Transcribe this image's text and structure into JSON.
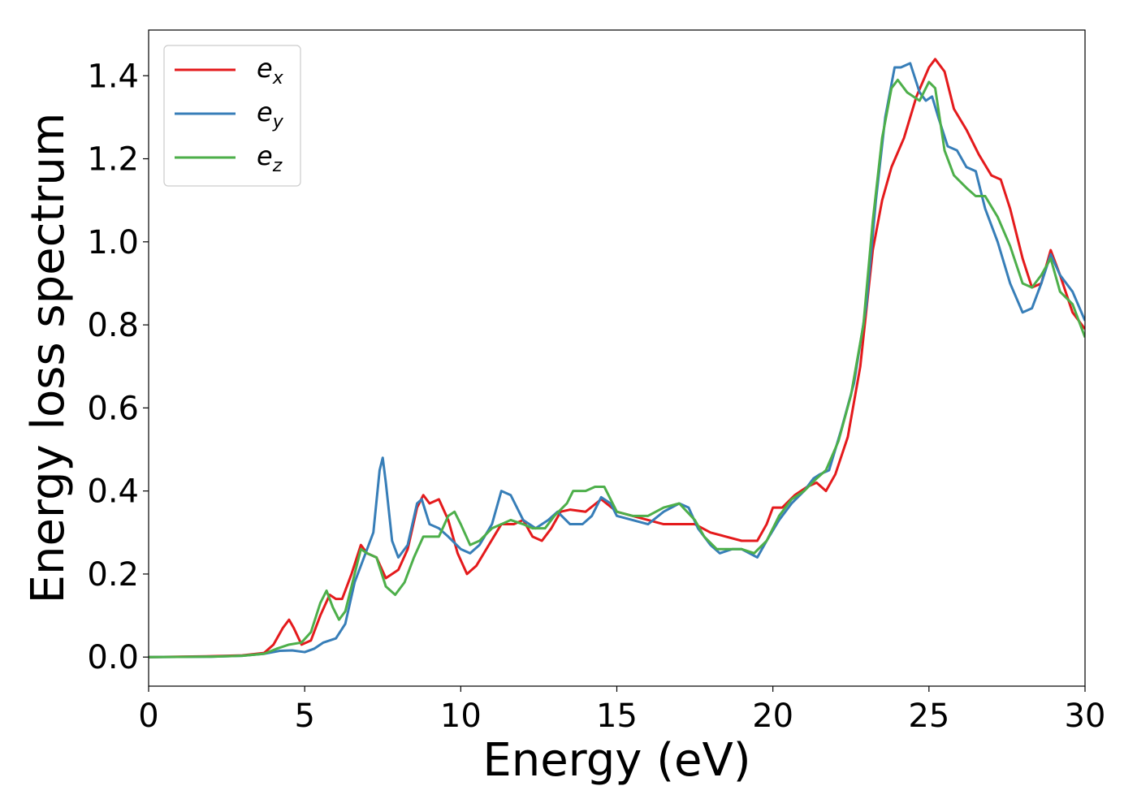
{
  "chart_data": {
    "type": "line",
    "xlabel": "Energy (eV)",
    "ylabel": "Energy loss spectrum",
    "xlim": [
      0,
      30
    ],
    "ylim": [
      -0.07,
      1.51
    ],
    "xticks": [
      0,
      5,
      10,
      15,
      20,
      25,
      30
    ],
    "xtick_labels": [
      "0",
      "5",
      "10",
      "15",
      "20",
      "25",
      "30"
    ],
    "yticks": [
      0.0,
      0.2,
      0.4,
      0.6,
      0.8,
      1.0,
      1.2,
      1.4
    ],
    "ytick_labels": [
      "0.0",
      "0.2",
      "0.4",
      "0.6",
      "0.8",
      "1.0",
      "1.2",
      "1.4"
    ],
    "grid": false,
    "legend_position": "top-left",
    "series": [
      {
        "name": "e_x",
        "label_base": "e",
        "label_sub": "x",
        "color": "#e41a1c",
        "points": [
          [
            0,
            0.0
          ],
          [
            2,
            0.002
          ],
          [
            3,
            0.004
          ],
          [
            3.7,
            0.01
          ],
          [
            4.0,
            0.03
          ],
          [
            4.3,
            0.07
          ],
          [
            4.5,
            0.09
          ],
          [
            4.65,
            0.07
          ],
          [
            4.9,
            0.03
          ],
          [
            5.2,
            0.04
          ],
          [
            5.5,
            0.1
          ],
          [
            5.8,
            0.15
          ],
          [
            6.0,
            0.14
          ],
          [
            6.2,
            0.14
          ],
          [
            6.5,
            0.2
          ],
          [
            6.8,
            0.27
          ],
          [
            7.0,
            0.25
          ],
          [
            7.3,
            0.24
          ],
          [
            7.6,
            0.19
          ],
          [
            8.0,
            0.21
          ],
          [
            8.3,
            0.26
          ],
          [
            8.6,
            0.36
          ],
          [
            8.8,
            0.39
          ],
          [
            9.0,
            0.37
          ],
          [
            9.3,
            0.38
          ],
          [
            9.6,
            0.33
          ],
          [
            9.9,
            0.25
          ],
          [
            10.2,
            0.2
          ],
          [
            10.5,
            0.22
          ],
          [
            10.9,
            0.27
          ],
          [
            11.3,
            0.32
          ],
          [
            11.7,
            0.32
          ],
          [
            12.0,
            0.33
          ],
          [
            12.3,
            0.29
          ],
          [
            12.6,
            0.28
          ],
          [
            12.9,
            0.31
          ],
          [
            13.2,
            0.35
          ],
          [
            13.5,
            0.355
          ],
          [
            14.0,
            0.35
          ],
          [
            14.5,
            0.38
          ],
          [
            15.0,
            0.35
          ],
          [
            15.5,
            0.34
          ],
          [
            16.0,
            0.33
          ],
          [
            16.5,
            0.32
          ],
          [
            17.0,
            0.32
          ],
          [
            17.5,
            0.32
          ],
          [
            18.0,
            0.3
          ],
          [
            18.5,
            0.29
          ],
          [
            19.0,
            0.28
          ],
          [
            19.5,
            0.28
          ],
          [
            19.8,
            0.32
          ],
          [
            20.0,
            0.36
          ],
          [
            20.3,
            0.36
          ],
          [
            20.7,
            0.39
          ],
          [
            21.1,
            0.41
          ],
          [
            21.4,
            0.42
          ],
          [
            21.7,
            0.4
          ],
          [
            22.0,
            0.44
          ],
          [
            22.4,
            0.53
          ],
          [
            22.8,
            0.7
          ],
          [
            23.2,
            0.98
          ],
          [
            23.5,
            1.1
          ],
          [
            23.8,
            1.18
          ],
          [
            24.2,
            1.25
          ],
          [
            24.6,
            1.35
          ],
          [
            25.0,
            1.42
          ],
          [
            25.2,
            1.44
          ],
          [
            25.5,
            1.41
          ],
          [
            25.8,
            1.32
          ],
          [
            26.2,
            1.27
          ],
          [
            26.6,
            1.21
          ],
          [
            27.0,
            1.16
          ],
          [
            27.3,
            1.15
          ],
          [
            27.6,
            1.08
          ],
          [
            28.0,
            0.96
          ],
          [
            28.3,
            0.89
          ],
          [
            28.6,
            0.9
          ],
          [
            28.9,
            0.98
          ],
          [
            29.2,
            0.92
          ],
          [
            29.6,
            0.83
          ],
          [
            30.0,
            0.79
          ]
        ]
      },
      {
        "name": "e_y",
        "label_base": "e",
        "label_sub": "y",
        "color": "#377eb8",
        "points": [
          [
            0,
            0.0
          ],
          [
            2,
            0.001
          ],
          [
            3,
            0.003
          ],
          [
            3.7,
            0.008
          ],
          [
            4.2,
            0.015
          ],
          [
            4.6,
            0.016
          ],
          [
            5.0,
            0.012
          ],
          [
            5.3,
            0.02
          ],
          [
            5.6,
            0.035
          ],
          [
            6.0,
            0.045
          ],
          [
            6.3,
            0.08
          ],
          [
            6.6,
            0.18
          ],
          [
            6.9,
            0.24
          ],
          [
            7.2,
            0.3
          ],
          [
            7.4,
            0.45
          ],
          [
            7.5,
            0.48
          ],
          [
            7.6,
            0.42
          ],
          [
            7.8,
            0.28
          ],
          [
            8.0,
            0.24
          ],
          [
            8.3,
            0.27
          ],
          [
            8.6,
            0.37
          ],
          [
            8.75,
            0.38
          ],
          [
            9.0,
            0.32
          ],
          [
            9.3,
            0.31
          ],
          [
            9.6,
            0.29
          ],
          [
            10.0,
            0.26
          ],
          [
            10.3,
            0.25
          ],
          [
            10.6,
            0.27
          ],
          [
            11.0,
            0.32
          ],
          [
            11.3,
            0.4
          ],
          [
            11.6,
            0.39
          ],
          [
            12.0,
            0.33
          ],
          [
            12.4,
            0.31
          ],
          [
            12.8,
            0.33
          ],
          [
            13.1,
            0.35
          ],
          [
            13.5,
            0.32
          ],
          [
            13.9,
            0.32
          ],
          [
            14.2,
            0.34
          ],
          [
            14.5,
            0.385
          ],
          [
            14.8,
            0.37
          ],
          [
            15.0,
            0.34
          ],
          [
            15.5,
            0.33
          ],
          [
            16.0,
            0.32
          ],
          [
            16.5,
            0.35
          ],
          [
            17.0,
            0.37
          ],
          [
            17.3,
            0.36
          ],
          [
            17.6,
            0.31
          ],
          [
            18.0,
            0.27
          ],
          [
            18.3,
            0.25
          ],
          [
            18.7,
            0.26
          ],
          [
            19.0,
            0.26
          ],
          [
            19.5,
            0.24
          ],
          [
            19.8,
            0.28
          ],
          [
            20.2,
            0.33
          ],
          [
            20.6,
            0.37
          ],
          [
            21.0,
            0.4
          ],
          [
            21.3,
            0.43
          ],
          [
            21.5,
            0.44
          ],
          [
            21.8,
            0.45
          ],
          [
            22.2,
            0.55
          ],
          [
            22.6,
            0.66
          ],
          [
            23.0,
            0.85
          ],
          [
            23.3,
            1.1
          ],
          [
            23.6,
            1.3
          ],
          [
            23.9,
            1.42
          ],
          [
            24.1,
            1.42
          ],
          [
            24.4,
            1.43
          ],
          [
            24.7,
            1.36
          ],
          [
            24.9,
            1.34
          ],
          [
            25.1,
            1.35
          ],
          [
            25.3,
            1.3
          ],
          [
            25.6,
            1.23
          ],
          [
            25.9,
            1.22
          ],
          [
            26.2,
            1.18
          ],
          [
            26.5,
            1.17
          ],
          [
            26.8,
            1.08
          ],
          [
            27.2,
            1.0
          ],
          [
            27.6,
            0.9
          ],
          [
            28.0,
            0.83
          ],
          [
            28.3,
            0.84
          ],
          [
            28.6,
            0.9
          ],
          [
            28.9,
            0.97
          ],
          [
            29.2,
            0.92
          ],
          [
            29.6,
            0.88
          ],
          [
            30.0,
            0.81
          ]
        ]
      },
      {
        "name": "e_z",
        "label_base": "e",
        "label_sub": "z",
        "color": "#4daf4a",
        "points": [
          [
            0,
            0.0
          ],
          [
            2,
            0.001
          ],
          [
            3,
            0.003
          ],
          [
            3.7,
            0.008
          ],
          [
            4.1,
            0.02
          ],
          [
            4.5,
            0.03
          ],
          [
            4.9,
            0.035
          ],
          [
            5.2,
            0.06
          ],
          [
            5.5,
            0.13
          ],
          [
            5.7,
            0.16
          ],
          [
            5.9,
            0.12
          ],
          [
            6.1,
            0.09
          ],
          [
            6.3,
            0.11
          ],
          [
            6.6,
            0.2
          ],
          [
            6.8,
            0.26
          ],
          [
            7.0,
            0.25
          ],
          [
            7.3,
            0.24
          ],
          [
            7.6,
            0.17
          ],
          [
            7.9,
            0.15
          ],
          [
            8.2,
            0.18
          ],
          [
            8.5,
            0.24
          ],
          [
            8.8,
            0.29
          ],
          [
            9.1,
            0.29
          ],
          [
            9.3,
            0.29
          ],
          [
            9.6,
            0.34
          ],
          [
            9.8,
            0.35
          ],
          [
            10.0,
            0.32
          ],
          [
            10.3,
            0.27
          ],
          [
            10.6,
            0.28
          ],
          [
            11.0,
            0.31
          ],
          [
            11.3,
            0.32
          ],
          [
            11.6,
            0.33
          ],
          [
            12.0,
            0.32
          ],
          [
            12.3,
            0.31
          ],
          [
            12.7,
            0.31
          ],
          [
            13.0,
            0.34
          ],
          [
            13.4,
            0.37
          ],
          [
            13.6,
            0.4
          ],
          [
            14.0,
            0.4
          ],
          [
            14.3,
            0.41
          ],
          [
            14.6,
            0.41
          ],
          [
            15.0,
            0.35
          ],
          [
            15.5,
            0.34
          ],
          [
            16.0,
            0.34
          ],
          [
            16.5,
            0.36
          ],
          [
            17.0,
            0.37
          ],
          [
            17.5,
            0.33
          ],
          [
            17.8,
            0.29
          ],
          [
            18.2,
            0.26
          ],
          [
            18.6,
            0.26
          ],
          [
            19.0,
            0.26
          ],
          [
            19.4,
            0.25
          ],
          [
            19.8,
            0.28
          ],
          [
            20.2,
            0.34
          ],
          [
            20.6,
            0.38
          ],
          [
            21.0,
            0.4
          ],
          [
            21.4,
            0.43
          ],
          [
            21.7,
            0.45
          ],
          [
            22.1,
            0.52
          ],
          [
            22.5,
            0.63
          ],
          [
            22.9,
            0.8
          ],
          [
            23.2,
            1.05
          ],
          [
            23.5,
            1.25
          ],
          [
            23.8,
            1.37
          ],
          [
            24.0,
            1.39
          ],
          [
            24.3,
            1.36
          ],
          [
            24.7,
            1.34
          ],
          [
            25.0,
            1.385
          ],
          [
            25.2,
            1.37
          ],
          [
            25.5,
            1.22
          ],
          [
            25.8,
            1.16
          ],
          [
            26.2,
            1.13
          ],
          [
            26.5,
            1.11
          ],
          [
            26.8,
            1.11
          ],
          [
            27.2,
            1.06
          ],
          [
            27.6,
            0.99
          ],
          [
            28.0,
            0.9
          ],
          [
            28.3,
            0.89
          ],
          [
            28.6,
            0.92
          ],
          [
            28.9,
            0.96
          ],
          [
            29.2,
            0.88
          ],
          [
            29.6,
            0.85
          ],
          [
            30.0,
            0.77
          ]
        ]
      }
    ]
  }
}
